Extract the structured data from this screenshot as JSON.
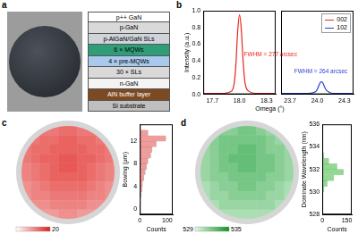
{
  "diagram": {
    "title": "a",
    "layers": [
      "p++ GaN",
      "p-GaN",
      "p-AlGaN/GaN SLs",
      "6 × MQWs",
      "4 × pre-MQWs",
      "30 × SLs",
      "n-GaN",
      "AlN buffer layer",
      "Si substrate"
    ]
  },
  "chart_data": [
    {
      "title": "b",
      "type": "line",
      "x_label": "Omega (°)",
      "y_label": "Intensity (a.u.)",
      "ylim": [
        0,
        1
      ],
      "yticks": [
        {
          "value": 0,
          "label": "0.0"
        },
        0.2,
        0.4,
        0.6,
        0.8,
        {
          "value": 1,
          "label": "1.0"
        }
      ],
      "grid": false,
      "legend": "upper right",
      "series": [
        {
          "name": "002",
          "color": "#e8251f",
          "annotation": "FWHM = 277 arcsec",
          "xlim": [
            17.6,
            18.4
          ],
          "xticks": [
            17.7,
            {
              "value": 18,
              "label": "18.0"
            },
            18.3
          ],
          "x": [
            17.6,
            17.7,
            17.8,
            17.9,
            17.94,
            17.96,
            17.98,
            18.0,
            18.02,
            18.04,
            18.06,
            18.1,
            18.2,
            18.3,
            18.4
          ],
          "values": [
            0.01,
            0.01,
            0.01,
            0.03,
            0.12,
            0.35,
            0.75,
            0.95,
            0.78,
            0.4,
            0.15,
            0.04,
            0.01,
            0.01,
            0.01
          ]
        },
        {
          "name": "102",
          "color": "#2c3fd1",
          "annotation": "FWHM = 264 arcsec",
          "xlim": [
            23.6,
            24.4
          ],
          "xticks": [
            23.7,
            {
              "value": 24,
              "label": "24.0"
            },
            24.3
          ],
          "x": [
            23.6,
            23.7,
            23.8,
            23.9,
            23.98,
            24.0,
            24.02,
            24.04,
            24.06,
            24.08,
            24.1,
            24.14,
            24.2,
            24.3,
            24.4
          ],
          "values": [
            0.01,
            0.01,
            0.01,
            0.01,
            0.03,
            0.06,
            0.11,
            0.15,
            0.14,
            0.09,
            0.05,
            0.02,
            0.01,
            0.01,
            0.01
          ]
        }
      ]
    },
    {
      "title": "c",
      "type": "histogram",
      "orientation": "horizontal",
      "grid": false,
      "y_label": "Bowing (μm)",
      "x_label": "Counts",
      "color": "#f29b9b",
      "bins": [
        1,
        2,
        3,
        4,
        5,
        6,
        7,
        8,
        9,
        10,
        11,
        12,
        13,
        14
      ],
      "values": [
        3,
        5,
        8,
        10,
        15,
        20,
        25,
        30,
        40,
        45,
        60,
        95,
        30
      ],
      "ylim": [
        -1,
        15
      ],
      "yticks": [
        0,
        4,
        8,
        12
      ],
      "xlim": [
        0,
        120
      ],
      "xticks": [
        0,
        100
      ],
      "map": {
        "colorbar_range": [
          0,
          20
        ],
        "colorbar_ticks": [
          20
        ],
        "cells": [
          [
            null,
            null,
            12,
            12,
            13,
            13,
            12,
            12,
            null,
            null
          ],
          [
            null,
            12,
            13,
            13,
            14,
            14,
            13,
            13,
            12,
            null
          ],
          [
            12,
            13,
            13,
            14,
            14,
            14,
            14,
            13,
            13,
            12
          ],
          [
            12,
            13,
            14,
            14,
            15,
            15,
            14,
            14,
            13,
            12
          ],
          [
            11,
            12,
            13,
            14,
            15,
            15,
            14,
            13,
            12,
            11
          ],
          [
            11,
            12,
            13,
            14,
            14,
            14,
            14,
            13,
            12,
            11
          ],
          [
            10,
            11,
            12,
            13,
            13,
            13,
            13,
            12,
            11,
            10
          ],
          [
            10,
            11,
            11,
            12,
            12,
            12,
            12,
            11,
            11,
            10
          ],
          [
            null,
            10,
            10,
            11,
            11,
            11,
            11,
            10,
            10,
            null
          ],
          [
            null,
            null,
            9,
            9,
            10,
            10,
            9,
            9,
            null,
            null
          ]
        ]
      }
    },
    {
      "title": "d",
      "type": "histogram",
      "orientation": "horizontal",
      "grid": false,
      "y_label": "Dominate Wavelength (nm)",
      "x_label": "Counts",
      "color": "#8fdc8f",
      "bins": [
        530,
        530.5,
        531,
        531.5,
        532,
        532.5,
        533,
        533.5
      ],
      "values": [
        10,
        30,
        70,
        130,
        90,
        40,
        10
      ],
      "ylim": [
        528,
        536
      ],
      "yticks": [
        528,
        530,
        532,
        534,
        536
      ],
      "xlim": [
        0,
        180
      ],
      "xticks": [
        0,
        150
      ],
      "map": {
        "colorbar_range": [
          529,
          535
        ],
        "colorbar_ticks": [
          529,
          535
        ],
        "cells": [
          [
            null,
            null,
            531.5,
            531.5,
            532,
            532,
            531.5,
            531,
            null,
            null
          ],
          [
            null,
            531.5,
            532,
            532,
            532,
            532,
            532,
            531.5,
            531,
            null
          ],
          [
            531,
            531.5,
            532,
            532,
            532.5,
            532.5,
            532,
            531.5,
            531.5,
            531
          ],
          [
            531,
            531.5,
            532,
            532.5,
            532.5,
            532.5,
            532,
            532,
            531.5,
            531
          ],
          [
            531,
            531.5,
            532,
            532,
            532.5,
            532.5,
            532,
            532,
            531.5,
            531
          ],
          [
            531,
            531.5,
            531.5,
            532,
            532,
            532,
            532,
            531.5,
            531.5,
            531
          ],
          [
            530.5,
            531,
            531.5,
            531.5,
            532,
            532,
            531.5,
            531.5,
            531,
            530.5
          ],
          [
            530.5,
            531,
            531,
            531.5,
            531.5,
            531.5,
            531.5,
            531,
            531,
            530.5
          ],
          [
            null,
            530.5,
            531,
            531,
            531,
            531,
            531,
            531,
            530.5,
            null
          ],
          [
            null,
            null,
            530.5,
            530.5,
            530.5,
            530.5,
            530.5,
            530.5,
            null,
            null
          ]
        ]
      }
    }
  ]
}
